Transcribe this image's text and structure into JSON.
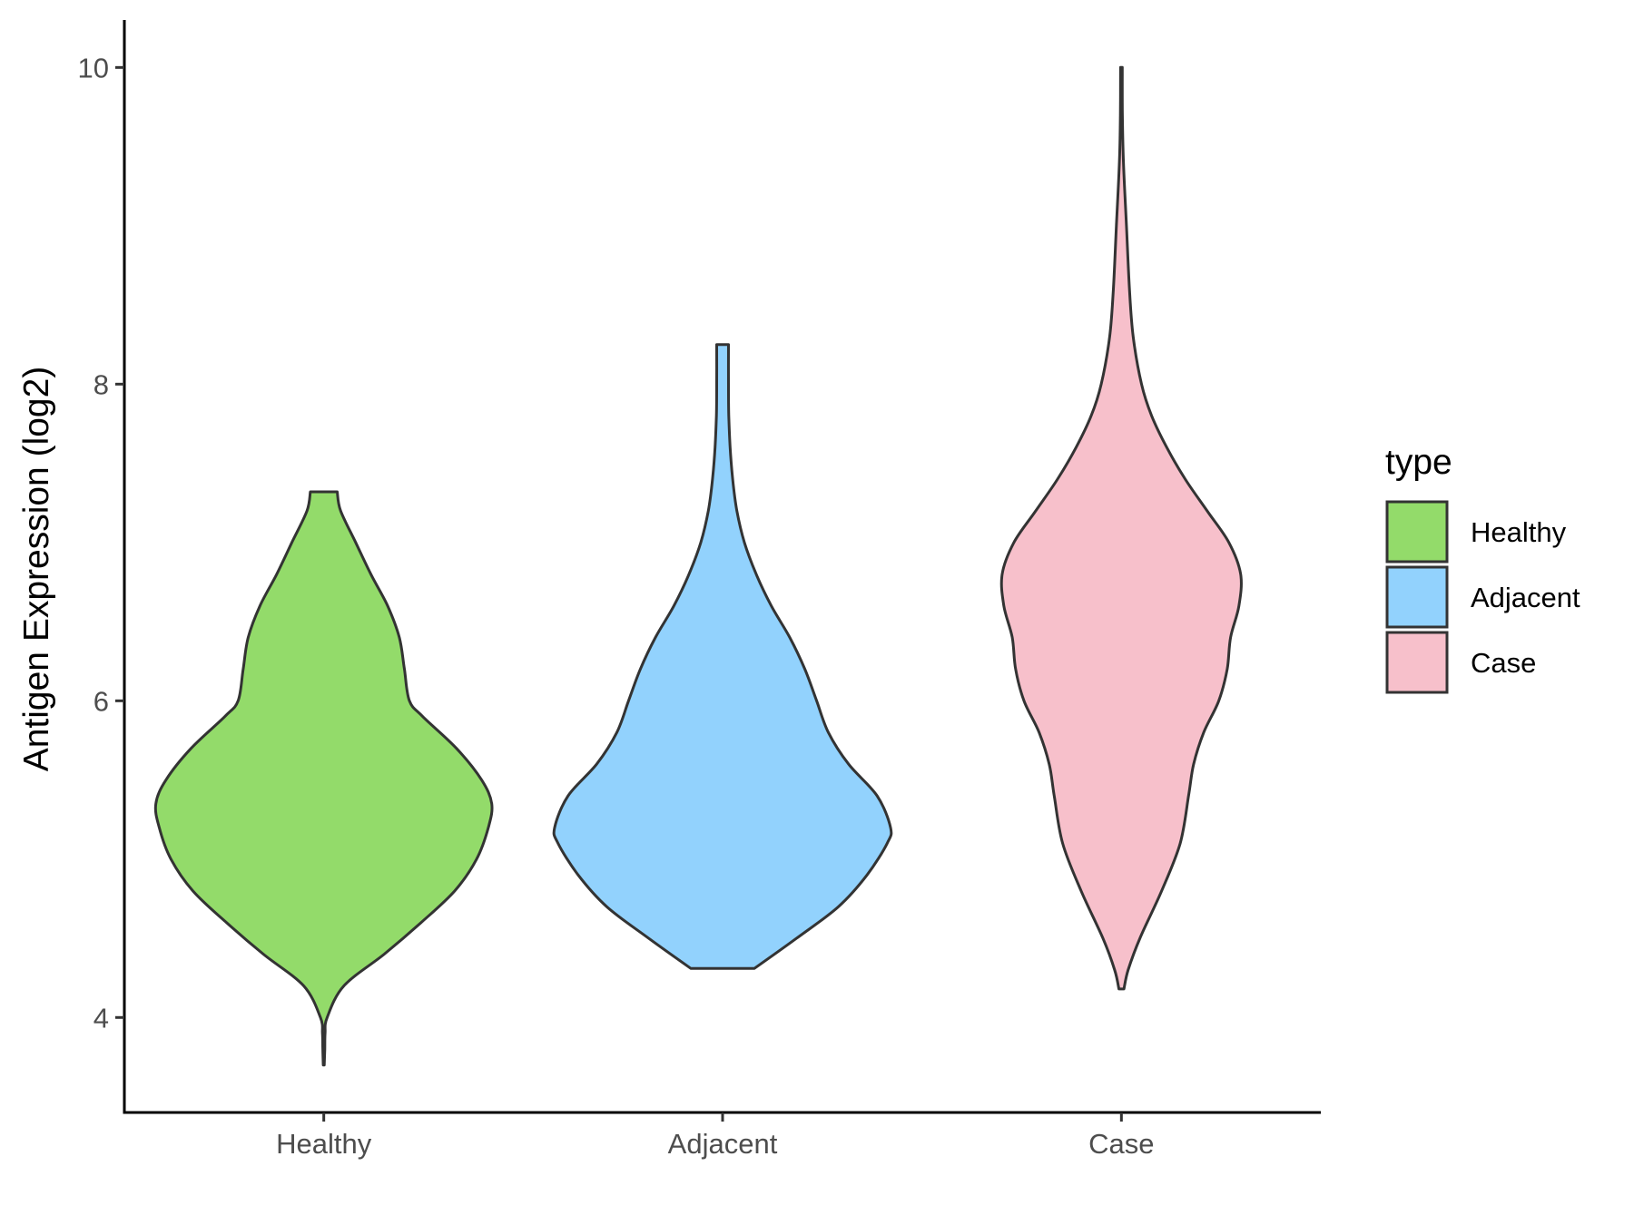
{
  "chart_data": {
    "type": "violin",
    "title": "",
    "xlabel": "",
    "ylabel": "Antigen Expression (log2)",
    "ylim": [
      3.4,
      10.3
    ],
    "y_ticks": [
      4,
      6,
      8,
      10
    ],
    "y_tick_labels": [
      "4",
      "6",
      "8",
      "10"
    ],
    "grid": false,
    "legend": {
      "title": "type",
      "placement": "right"
    },
    "categories": [
      "Healthy",
      "Adjacent",
      "Case"
    ],
    "series": [
      {
        "name": "Healthy",
        "color": "#93db6a",
        "min": 3.7,
        "max": 7.32,
        "profile": [
          [
            3.7,
            0.003
          ],
          [
            3.8,
            0.006
          ],
          [
            3.9,
            0.008
          ],
          [
            4.0,
            0.02
          ],
          [
            4.2,
            0.12
          ],
          [
            4.4,
            0.36
          ],
          [
            4.6,
            0.58
          ],
          [
            4.8,
            0.78
          ],
          [
            5.0,
            0.91
          ],
          [
            5.2,
            0.98
          ],
          [
            5.35,
            1.0
          ],
          [
            5.5,
            0.94
          ],
          [
            5.7,
            0.79
          ],
          [
            5.9,
            0.59
          ],
          [
            6.0,
            0.51
          ],
          [
            6.2,
            0.48
          ],
          [
            6.4,
            0.45
          ],
          [
            6.6,
            0.38
          ],
          [
            6.8,
            0.28
          ],
          [
            7.0,
            0.19
          ],
          [
            7.2,
            0.1
          ],
          [
            7.32,
            0.08
          ]
        ]
      },
      {
        "name": "Adjacent",
        "color": "#92d2fd",
        "min": 4.31,
        "max": 8.25,
        "profile": [
          [
            4.31,
            0.19
          ],
          [
            4.5,
            0.44
          ],
          [
            4.7,
            0.69
          ],
          [
            4.9,
            0.86
          ],
          [
            5.1,
            0.98
          ],
          [
            5.2,
            1.0
          ],
          [
            5.4,
            0.92
          ],
          [
            5.6,
            0.75
          ],
          [
            5.8,
            0.63
          ],
          [
            6.0,
            0.56
          ],
          [
            6.2,
            0.49
          ],
          [
            6.4,
            0.4
          ],
          [
            6.6,
            0.29
          ],
          [
            6.8,
            0.2
          ],
          [
            7.0,
            0.13
          ],
          [
            7.2,
            0.085
          ],
          [
            7.4,
            0.06
          ],
          [
            7.6,
            0.045
          ],
          [
            7.8,
            0.037
          ],
          [
            8.0,
            0.035
          ],
          [
            8.25,
            0.035
          ]
        ]
      },
      {
        "name": "Case",
        "color": "#f7c0cb",
        "min": 4.18,
        "max": 10.0,
        "profile": [
          [
            4.18,
            0.015
          ],
          [
            4.3,
            0.04
          ],
          [
            4.5,
            0.11
          ],
          [
            4.8,
            0.24
          ],
          [
            5.1,
            0.35
          ],
          [
            5.4,
            0.4
          ],
          [
            5.6,
            0.43
          ],
          [
            5.8,
            0.49
          ],
          [
            6.0,
            0.58
          ],
          [
            6.2,
            0.63
          ],
          [
            6.4,
            0.65
          ],
          [
            6.6,
            0.7
          ],
          [
            6.8,
            0.71
          ],
          [
            7.0,
            0.64
          ],
          [
            7.2,
            0.51
          ],
          [
            7.4,
            0.38
          ],
          [
            7.6,
            0.27
          ],
          [
            7.8,
            0.18
          ],
          [
            8.0,
            0.12
          ],
          [
            8.3,
            0.07
          ],
          [
            8.6,
            0.048
          ],
          [
            9.0,
            0.03
          ],
          [
            9.4,
            0.012
          ],
          [
            9.7,
            0.006
          ],
          [
            10.0,
            0.005
          ]
        ]
      }
    ]
  }
}
